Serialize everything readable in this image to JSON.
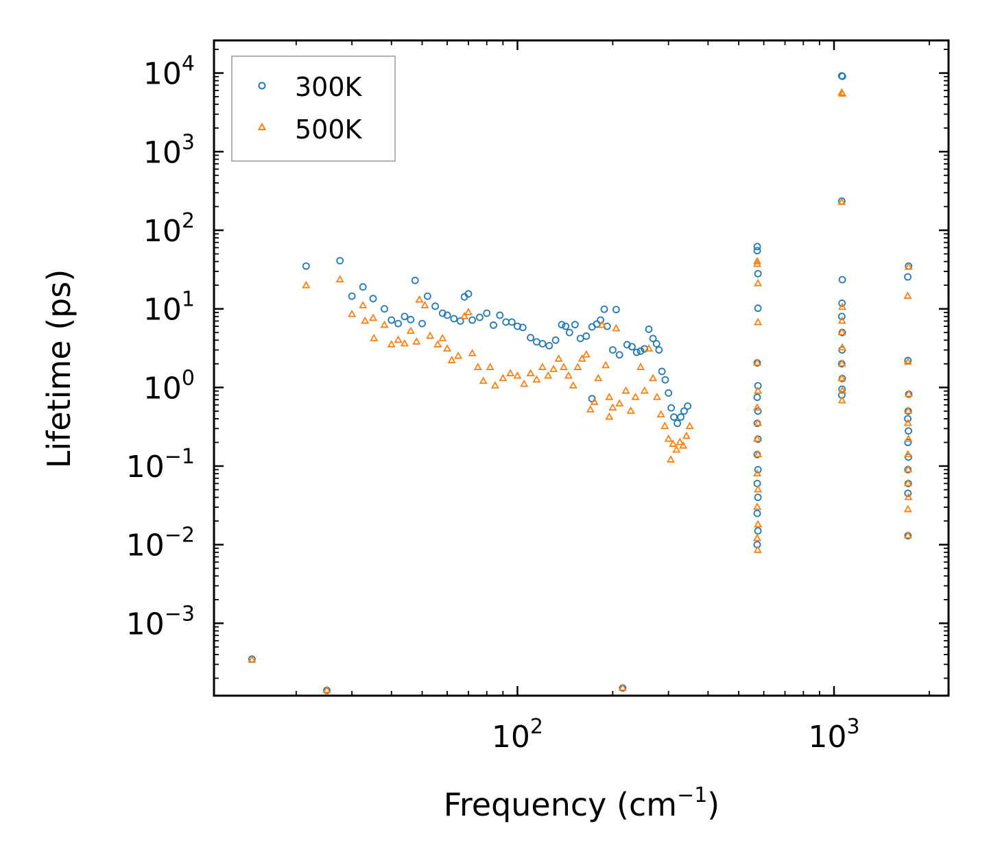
{
  "chart_data": {
    "type": "scatter",
    "xlabel": "Frequency (cm",
    "xlabel_exp": "−1",
    "xlabel_end": ")",
    "ylabel": "Lifetime (ps)",
    "xscale": "log",
    "yscale": "log",
    "xlim": [
      11,
      2300
    ],
    "ylim": [
      0.00012,
      26000
    ],
    "x_ticks": [
      {
        "value": 100,
        "base": "10",
        "exp": "2"
      },
      {
        "value": 1000,
        "base": "10",
        "exp": "3"
      }
    ],
    "y_ticks": [
      {
        "value": 10000,
        "base": "10",
        "exp": "4"
      },
      {
        "value": 1000,
        "base": "10",
        "exp": "3"
      },
      {
        "value": 100,
        "base": "10",
        "exp": "2"
      },
      {
        "value": 10,
        "base": "10",
        "exp": "1"
      },
      {
        "value": 1,
        "base": "10",
        "exp": "0"
      },
      {
        "value": 0.1,
        "base": "10",
        "exp": "−1"
      },
      {
        "value": 0.01,
        "base": "10",
        "exp": "−2"
      },
      {
        "value": 0.001,
        "base": "10",
        "exp": "−3"
      }
    ],
    "legend_position": "top-left",
    "colors": {
      "series_300K": "#1f77b4",
      "series_500K": "#ff7f0e"
    },
    "series": [
      {
        "name": "300K",
        "marker": "circle",
        "points": [
          [
            14.5,
            0.00035
          ],
          [
            21.5,
            35
          ],
          [
            25,
            0.00014
          ],
          [
            27.5,
            41
          ],
          [
            30,
            14.5
          ],
          [
            32.5,
            19
          ],
          [
            35,
            13.5
          ],
          [
            38,
            10
          ],
          [
            40,
            7.2
          ],
          [
            42,
            6.5
          ],
          [
            44,
            8
          ],
          [
            46,
            7.3
          ],
          [
            47.5,
            23
          ],
          [
            50,
            6.5
          ],
          [
            52,
            14.5
          ],
          [
            55,
            10.8
          ],
          [
            58,
            8.8
          ],
          [
            60,
            8.3
          ],
          [
            63,
            7.5
          ],
          [
            66,
            7
          ],
          [
            68,
            14.2
          ],
          [
            70,
            15.5
          ],
          [
            72,
            7.2
          ],
          [
            76,
            7.8
          ],
          [
            80,
            8.8
          ],
          [
            84,
            6.2
          ],
          [
            88,
            8.3
          ],
          [
            92,
            6.8
          ],
          [
            96,
            6.8
          ],
          [
            100,
            6
          ],
          [
            104,
            5.8
          ],
          [
            110,
            4.3
          ],
          [
            115,
            3.8
          ],
          [
            120,
            3.6
          ],
          [
            126,
            3.4
          ],
          [
            132,
            4
          ],
          [
            138,
            6.3
          ],
          [
            142,
            6
          ],
          [
            146,
            5
          ],
          [
            152,
            6.3
          ],
          [
            158,
            4.2
          ],
          [
            165,
            4.5
          ],
          [
            172,
            5.9
          ],
          [
            178,
            6.4
          ],
          [
            183,
            7.2
          ],
          [
            188,
            9.9
          ],
          [
            192,
            6
          ],
          [
            200,
            3
          ],
          [
            205,
            9.8
          ],
          [
            210,
            2.6
          ],
          [
            215,
            0.00015
          ],
          [
            222,
            3.5
          ],
          [
            230,
            3.3
          ],
          [
            238,
            2.8
          ],
          [
            245,
            2.9
          ],
          [
            252,
            3.1
          ],
          [
            260,
            5.5
          ],
          [
            268,
            4.2
          ],
          [
            275,
            3.6
          ],
          [
            280,
            3
          ],
          [
            286,
            1.6
          ],
          [
            293,
            1.25
          ],
          [
            300,
            0.85
          ],
          [
            306,
            0.55
          ],
          [
            312,
            0.42
          ],
          [
            320,
            0.35
          ],
          [
            328,
            0.42
          ],
          [
            336,
            0.5
          ],
          [
            345,
            0.58
          ],
          [
            172,
            0.72
          ],
          [
            572,
            62
          ],
          [
            572,
            55
          ],
          [
            575,
            28
          ],
          [
            575,
            10.2
          ],
          [
            572,
            2.05
          ],
          [
            575,
            1.05
          ],
          [
            572,
            0.75
          ],
          [
            575,
            0.5
          ],
          [
            572,
            0.35
          ],
          [
            575,
            0.22
          ],
          [
            572,
            0.14
          ],
          [
            575,
            0.09
          ],
          [
            572,
            0.06
          ],
          [
            575,
            0.04
          ],
          [
            572,
            0.025
          ],
          [
            575,
            0.015
          ],
          [
            572,
            0.01
          ],
          [
            1058,
            9200
          ],
          [
            1063,
            9100
          ],
          [
            1058,
            235
          ],
          [
            1062,
            23.5
          ],
          [
            1060,
            11.8
          ],
          [
            1058,
            8
          ],
          [
            1062,
            5
          ],
          [
            1060,
            3
          ],
          [
            1058,
            2
          ],
          [
            1062,
            1.3
          ],
          [
            1060,
            0.95
          ],
          [
            1058,
            0.8
          ],
          [
            1710,
            25.5
          ],
          [
            1720,
            35
          ],
          [
            1712,
            2.2
          ],
          [
            1722,
            0.82
          ],
          [
            1715,
            0.5
          ],
          [
            1710,
            0.4
          ],
          [
            1718,
            0.28
          ],
          [
            1712,
            0.2
          ],
          [
            1718,
            0.13
          ],
          [
            1712,
            0.09
          ],
          [
            1716,
            0.06
          ],
          [
            1712,
            0.045
          ],
          [
            1712,
            0.013
          ]
        ]
      },
      {
        "name": "500K",
        "marker": "triangle",
        "points": [
          [
            14.5,
            0.00034
          ],
          [
            21.5,
            19.8
          ],
          [
            25,
            0.00014
          ],
          [
            27.5,
            23.5
          ],
          [
            30,
            8.5
          ],
          [
            32.5,
            11
          ],
          [
            33,
            7
          ],
          [
            35,
            7.6
          ],
          [
            35.2,
            4.2
          ],
          [
            38,
            6.2
          ],
          [
            40,
            3.5
          ],
          [
            42,
            4
          ],
          [
            44,
            3.6
          ],
          [
            46,
            5.2
          ],
          [
            48,
            3.8
          ],
          [
            49,
            13
          ],
          [
            51,
            11
          ],
          [
            53,
            4.5
          ],
          [
            56,
            3.5
          ],
          [
            58,
            4.2
          ],
          [
            60,
            3.1
          ],
          [
            62,
            2.2
          ],
          [
            65,
            2.5
          ],
          [
            68,
            8
          ],
          [
            70,
            9
          ],
          [
            72,
            2.7
          ],
          [
            75,
            1.8
          ],
          [
            78,
            1.2
          ],
          [
            82,
            1.8
          ],
          [
            85,
            1.05
          ],
          [
            90,
            1.3
          ],
          [
            95,
            1.5
          ],
          [
            100,
            1.4
          ],
          [
            105,
            1.1
          ],
          [
            110,
            1.5
          ],
          [
            115,
            1.25
          ],
          [
            120,
            1.8
          ],
          [
            125,
            1.4
          ],
          [
            130,
            1.7
          ],
          [
            135,
            2.3
          ],
          [
            140,
            1.8
          ],
          [
            145,
            1.4
          ],
          [
            150,
            1.05
          ],
          [
            155,
            1.8
          ],
          [
            160,
            2.3
          ],
          [
            165,
            2.6
          ],
          [
            170,
            0.52
          ],
          [
            175,
            0.65
          ],
          [
            180,
            1.3
          ],
          [
            185,
            6.2
          ],
          [
            190,
            1.9
          ],
          [
            195,
            0.75
          ],
          [
            200,
            0.55
          ],
          [
            205,
            5.6
          ],
          [
            210,
            0.62
          ],
          [
            215,
            0.00015
          ],
          [
            220,
            0.9
          ],
          [
            228,
            0.5
          ],
          [
            236,
            0.75
          ],
          [
            245,
            1.8
          ],
          [
            252,
            0.9
          ],
          [
            260,
            3.1
          ],
          [
            268,
            1.3
          ],
          [
            276,
            0.75
          ],
          [
            284,
            0.45
          ],
          [
            292,
            0.32
          ],
          [
            300,
            0.22
          ],
          [
            305,
            0.12
          ],
          [
            310,
            0.19
          ],
          [
            318,
            0.16
          ],
          [
            326,
            0.2
          ],
          [
            334,
            0.18
          ],
          [
            342,
            0.24
          ],
          [
            350,
            0.32
          ],
          [
            195,
            0.42
          ],
          [
            572,
            40
          ],
          [
            572,
            37
          ],
          [
            575,
            21
          ],
          [
            575,
            6.7
          ],
          [
            572,
            2.05
          ],
          [
            575,
            0.9
          ],
          [
            572,
            0.55
          ],
          [
            575,
            0.35
          ],
          [
            572,
            0.22
          ],
          [
            575,
            0.14
          ],
          [
            572,
            0.08
          ],
          [
            575,
            0.05
          ],
          [
            572,
            0.03
          ],
          [
            575,
            0.018
          ],
          [
            572,
            0.012
          ],
          [
            574,
            0.0085
          ],
          [
            1058,
            5600
          ],
          [
            1063,
            5400
          ],
          [
            1058,
            228
          ],
          [
            1062,
            10.5
          ],
          [
            1060,
            7
          ],
          [
            1058,
            5
          ],
          [
            1062,
            3.2
          ],
          [
            1060,
            2
          ],
          [
            1058,
            1.3
          ],
          [
            1062,
            0.9
          ],
          [
            1060,
            0.68
          ],
          [
            1710,
            14.5
          ],
          [
            1720,
            34
          ],
          [
            1712,
            2.1
          ],
          [
            1722,
            0.82
          ],
          [
            1715,
            0.5
          ],
          [
            1712,
            0.35
          ],
          [
            1718,
            0.22
          ],
          [
            1712,
            0.14
          ],
          [
            1716,
            0.09
          ],
          [
            1712,
            0.06
          ],
          [
            1718,
            0.04
          ],
          [
            1712,
            0.028
          ],
          [
            1712,
            0.013
          ]
        ]
      }
    ]
  }
}
